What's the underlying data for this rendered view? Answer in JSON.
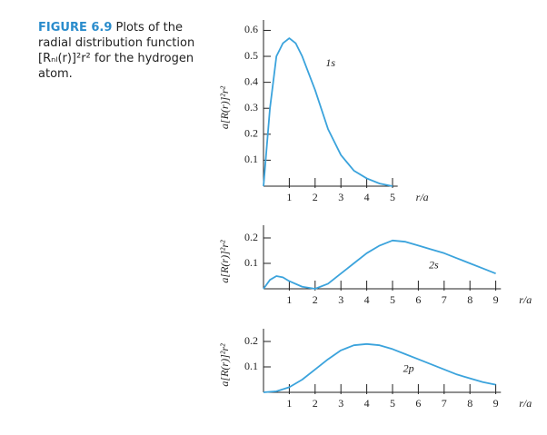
{
  "caption": {
    "label": "FIGURE 6.9",
    "text": "Plots of the radial distribution function [Rₙₗ(r)]²r² for the hydrogen atom."
  },
  "chart_data": [
    {
      "type": "line",
      "xlabel": "r/a",
      "ylabel": "a[R(r)]²r²",
      "annotation": "1s",
      "x": [
        0,
        0.25,
        0.5,
        0.75,
        1,
        1.25,
        1.5,
        2,
        2.5,
        3,
        3.5,
        4,
        4.5,
        5
      ],
      "series": [
        {
          "color": "#3ba3dc",
          "values": [
            0,
            0.3,
            0.5,
            0.55,
            0.57,
            0.55,
            0.5,
            0.37,
            0.22,
            0.12,
            0.06,
            0.03,
            0.01,
            0
          ]
        }
      ],
      "xlim": [
        0,
        5.2
      ],
      "ylim": [
        0,
        0.64
      ],
      "xticks": [
        1,
        2,
        3,
        4,
        5
      ],
      "yticks": [
        0.1,
        0.2,
        0.3,
        0.4,
        0.5,
        0.6
      ]
    },
    {
      "type": "line",
      "xlabel": "r/a",
      "ylabel": "a[R(r)]²r²",
      "annotation": "2s",
      "x": [
        0,
        0.25,
        0.5,
        0.75,
        1,
        1.5,
        2,
        2.5,
        3,
        3.5,
        4,
        4.5,
        5,
        5.5,
        6,
        6.5,
        7,
        7.5,
        8,
        8.5,
        9
      ],
      "series": [
        {
          "color": "#3ba3dc",
          "values": [
            0,
            0.035,
            0.05,
            0.045,
            0.03,
            0.008,
            0,
            0.02,
            0.06,
            0.1,
            0.14,
            0.17,
            0.19,
            0.185,
            0.17,
            0.155,
            0.14,
            0.12,
            0.1,
            0.08,
            0.06
          ]
        }
      ],
      "xlim": [
        0,
        9.2
      ],
      "ylim": [
        0,
        0.25
      ],
      "xticks": [
        1,
        2,
        3,
        4,
        5,
        6,
        7,
        8,
        9
      ],
      "yticks": [
        0.1,
        0.2
      ]
    },
    {
      "type": "line",
      "xlabel": "r/a",
      "ylabel": "a[R(r)]²r²",
      "annotation": "2p",
      "x": [
        0,
        0.5,
        1,
        1.5,
        2,
        2.5,
        3,
        3.5,
        4,
        4.5,
        5,
        5.5,
        6,
        6.5,
        7,
        7.5,
        8,
        8.5,
        9
      ],
      "series": [
        {
          "color": "#3ba3dc",
          "values": [
            0,
            0.004,
            0.02,
            0.05,
            0.09,
            0.13,
            0.165,
            0.185,
            0.19,
            0.185,
            0.17,
            0.15,
            0.13,
            0.11,
            0.09,
            0.07,
            0.055,
            0.04,
            0.03
          ]
        }
      ],
      "xlim": [
        0,
        9.2
      ],
      "ylim": [
        0,
        0.25
      ],
      "xticks": [
        1,
        2,
        3,
        4,
        5,
        6,
        7,
        8,
        9
      ],
      "yticks": [
        0.1,
        0.2
      ]
    }
  ]
}
